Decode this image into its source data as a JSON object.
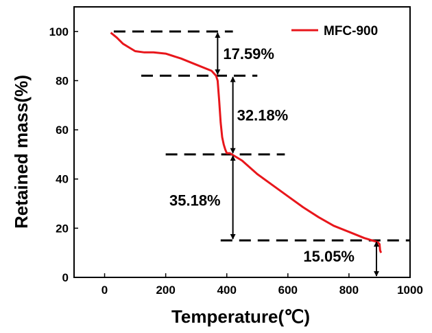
{
  "chart_data": {
    "type": "line",
    "xlabel": "Temperature(℃)",
    "ylabel": "Retained mass(%)",
    "xlim": [
      -100,
      1000
    ],
    "ylim": [
      0,
      110
    ],
    "xticks": [
      0,
      200,
      400,
      600,
      800,
      1000
    ],
    "yticks": [
      0,
      20,
      40,
      60,
      80,
      100
    ],
    "grid": false,
    "legend_position": "top-right",
    "series": [
      {
        "name": "MFC-900",
        "color": "#e8161b",
        "x": [
          20,
          40,
          60,
          80,
          100,
          130,
          160,
          200,
          250,
          300,
          350,
          365,
          370,
          375,
          380,
          385,
          390,
          395,
          400,
          410,
          430,
          450,
          500,
          550,
          600,
          650,
          700,
          750,
          800,
          850,
          890,
          895,
          900,
          902,
          905
        ],
        "y": [
          99.5,
          97.5,
          95,
          93.5,
          92,
          91.5,
          91.5,
          91,
          89,
          86.5,
          84,
          82,
          80,
          72,
          63,
          57,
          54,
          52,
          50.5,
          50.5,
          49,
          47.5,
          42,
          37.5,
          33,
          28.5,
          24.5,
          21,
          18.5,
          16,
          14.5,
          14.2,
          13.5,
          11,
          10
        ]
      }
    ],
    "annotations": {
      "reference_lines": [
        {
          "x_from": 30,
          "x_to": 420,
          "y": 100
        },
        {
          "x_from": 120,
          "x_to": 500,
          "y": 82
        },
        {
          "x_from": 200,
          "x_to": 590,
          "y": 50
        },
        {
          "x_from": 380,
          "x_to": 1000,
          "y": 15.05
        }
      ],
      "arrows": [
        {
          "x": 370,
          "y_from": 100,
          "y_to": 82,
          "label": "17.59%"
        },
        {
          "x": 420,
          "y_from": 82,
          "y_to": 50,
          "label": "32.18%"
        },
        {
          "x": 420,
          "y_from": 50,
          "y_to": 15.05,
          "label": "35.18%"
        },
        {
          "x": 890,
          "y_from": 15.05,
          "y_to": 0,
          "label": "15.05%"
        }
      ]
    }
  }
}
